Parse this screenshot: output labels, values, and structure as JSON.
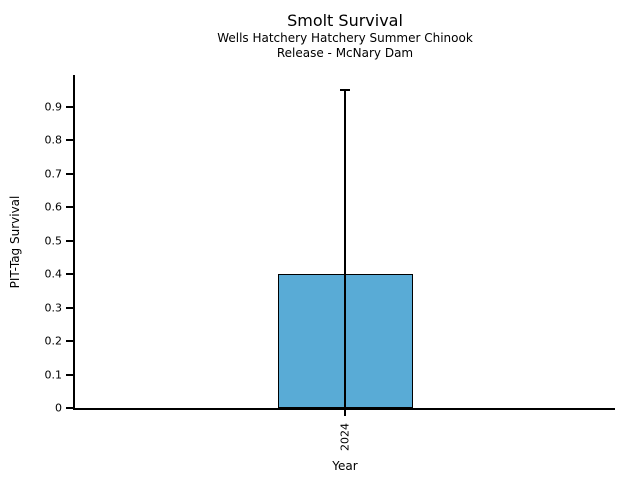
{
  "chart": {
    "title": "Smolt Survival",
    "subtitle_line1": "Wells Hatchery Hatchery Summer Chinook",
    "subtitle_line2": "Release - McNary Dam",
    "xlabel": "Year",
    "ylabel": "PIT-Tag Survival"
  },
  "chart_data": {
    "type": "bar",
    "title": "Smolt Survival",
    "subtitle": [
      "Wells Hatchery Hatchery Summer Chinook",
      "Release - McNary Dam"
    ],
    "xlabel": "Year",
    "ylabel": "PIT-Tag Survival",
    "categories": [
      "2024"
    ],
    "values": [
      0.4
    ],
    "error_upper": [
      0.95
    ],
    "error_lower": [
      0.0
    ],
    "ylim": [
      0,
      0.995
    ],
    "yticks": [
      0,
      0.1,
      0.2,
      0.3,
      0.4,
      0.5,
      0.6,
      0.7,
      0.8,
      0.9
    ],
    "ytick_labels": [
      "0",
      "0.1",
      "0.2",
      "0.3",
      "0.4",
      "0.5",
      "0.6",
      "0.7",
      "0.8",
      "0.9"
    ],
    "x_tick_rotation": 90,
    "grid": false,
    "legend": null,
    "bar_color": "#59ABD6",
    "bar_edge_color": "#000000",
    "axis_color": "#000000",
    "error_bar_color": "#000000"
  }
}
